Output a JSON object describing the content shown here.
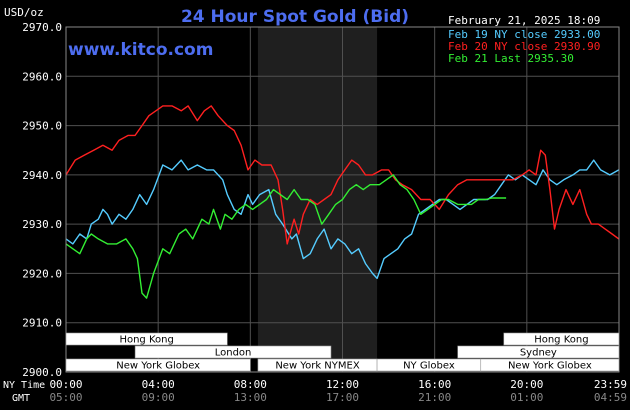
{
  "header": {
    "title": "24 Hour Spot Gold (Bid)",
    "site": "www.kitco.com",
    "timestamp": "February 21, 2025 18:09",
    "unit": "USD/oz"
  },
  "legend": [
    {
      "text": "Feb 19 NY close 2933.00",
      "color": "#55ccff"
    },
    {
      "text": "Feb 20 NY close 2930.90",
      "color": "#ff2020"
    },
    {
      "text": "Feb 21 Last 2935.30",
      "color": "#33ee33"
    }
  ],
  "time_axis": {
    "ny_label": "NY Time",
    "gmt_label": "GMT",
    "ny_ticks": [
      "00:00",
      "04:00",
      "08:00",
      "12:00",
      "16:00",
      "20:00",
      "23:59"
    ],
    "gmt_ticks": [
      "05:00",
      "09:00",
      "13:00",
      "17:00",
      "21:00",
      "01:00",
      "04:59"
    ]
  },
  "sessions": [
    {
      "label": "Hong Kong",
      "start": 0,
      "end": 7,
      "row": 0
    },
    {
      "label": "Hong Kong",
      "start": 19,
      "end": 24,
      "row": 0
    },
    {
      "label": "London",
      "start": 3,
      "end": 11.5,
      "row": 1
    },
    {
      "label": "Sydney",
      "start": 17,
      "end": 24,
      "row": 1
    },
    {
      "label": "New York Globex",
      "start": 0,
      "end": 8,
      "row": 2
    },
    {
      "label": "New York NYMEX",
      "start": 8.33,
      "end": 13.5,
      "row": 2
    },
    {
      "label": "NY Globex",
      "start": 13.5,
      "end": 18,
      "row": 2
    },
    {
      "label": "New York Globex",
      "start": 18,
      "end": 24,
      "row": 2
    }
  ],
  "colors": {
    "background": "#000000",
    "plot_bg": "#000000",
    "shade": "#1f1f1f",
    "grid": "#505050",
    "title": "#4d6df0",
    "axis_text": "#ffffff",
    "session_text": "#000000",
    "session_bg": "#ffffff"
  },
  "chart_data": {
    "type": "line",
    "title": "24 Hour Spot Gold (Bid)",
    "ylabel": "USD/oz",
    "xlabel": "",
    "xlim": [
      0,
      24
    ],
    "ylim": [
      2900,
      2970
    ],
    "y_ticks": [
      "2970.0",
      "2960.0",
      "2950.0",
      "2940.0",
      "2930.0",
      "2920.0",
      "2910.0",
      "2900.0"
    ],
    "y_tick_values": [
      2970,
      2960,
      2950,
      2940,
      2930,
      2920,
      2910,
      2900
    ],
    "shaded_range": [
      8.33,
      13.5
    ],
    "grid": true,
    "legend_position": "top-right",
    "series": [
      {
        "name": "Feb 19 NY close 2933.00",
        "color": "#55ccff",
        "points": [
          [
            0,
            2927
          ],
          [
            0.3,
            2926
          ],
          [
            0.6,
            2928
          ],
          [
            0.9,
            2927
          ],
          [
            1.1,
            2930
          ],
          [
            1.4,
            2931
          ],
          [
            1.6,
            2933
          ],
          [
            1.8,
            2932
          ],
          [
            2.0,
            2930
          ],
          [
            2.3,
            2932
          ],
          [
            2.6,
            2931
          ],
          [
            2.9,
            2933
          ],
          [
            3.2,
            2936
          ],
          [
            3.5,
            2934
          ],
          [
            3.8,
            2937
          ],
          [
            4.2,
            2942
          ],
          [
            4.6,
            2941
          ],
          [
            5.0,
            2943
          ],
          [
            5.3,
            2941
          ],
          [
            5.7,
            2942
          ],
          [
            6.1,
            2941
          ],
          [
            6.4,
            2941
          ],
          [
            6.8,
            2939
          ],
          [
            7.0,
            2936
          ],
          [
            7.3,
            2933
          ],
          [
            7.6,
            2932
          ],
          [
            7.9,
            2936
          ],
          [
            8.1,
            2934
          ],
          [
            8.4,
            2936
          ],
          [
            8.8,
            2937
          ],
          [
            9.1,
            2932
          ],
          [
            9.4,
            2930
          ],
          [
            9.8,
            2927
          ],
          [
            10.0,
            2928
          ],
          [
            10.3,
            2923
          ],
          [
            10.6,
            2924
          ],
          [
            10.9,
            2927
          ],
          [
            11.2,
            2929
          ],
          [
            11.5,
            2925
          ],
          [
            11.8,
            2927
          ],
          [
            12.1,
            2926
          ],
          [
            12.4,
            2924
          ],
          [
            12.7,
            2925
          ],
          [
            13.0,
            2922
          ],
          [
            13.3,
            2920
          ],
          [
            13.5,
            2919
          ],
          [
            13.8,
            2923
          ],
          [
            14.1,
            2924
          ],
          [
            14.4,
            2925
          ],
          [
            14.7,
            2927
          ],
          [
            15.0,
            2928
          ],
          [
            15.3,
            2932
          ],
          [
            15.6,
            2933
          ],
          [
            15.9,
            2934
          ],
          [
            16.2,
            2935
          ],
          [
            16.5,
            2935
          ],
          [
            16.8,
            2934
          ],
          [
            17.1,
            2933
          ],
          [
            17.4,
            2934
          ],
          [
            17.7,
            2935
          ],
          [
            18.0,
            2935
          ],
          [
            18.3,
            2935
          ],
          [
            18.6,
            2936
          ],
          [
            18.9,
            2938
          ],
          [
            19.2,
            2940
          ],
          [
            19.5,
            2939
          ],
          [
            19.8,
            2940
          ],
          [
            20.1,
            2939
          ],
          [
            20.4,
            2938
          ],
          [
            20.7,
            2941
          ],
          [
            21.0,
            2939
          ],
          [
            21.3,
            2938
          ],
          [
            21.6,
            2939
          ],
          [
            22.0,
            2940
          ],
          [
            22.3,
            2941
          ],
          [
            22.6,
            2941
          ],
          [
            22.9,
            2943
          ],
          [
            23.2,
            2941
          ],
          [
            23.6,
            2940
          ],
          [
            23.99,
            2941
          ]
        ]
      },
      {
        "name": "Feb 20 NY close 2930.90",
        "color": "#ff2020",
        "points": [
          [
            0,
            2940
          ],
          [
            0.4,
            2943
          ],
          [
            0.8,
            2944
          ],
          [
            1.2,
            2945
          ],
          [
            1.6,
            2946
          ],
          [
            2.0,
            2945
          ],
          [
            2.3,
            2947
          ],
          [
            2.7,
            2948
          ],
          [
            3.0,
            2948
          ],
          [
            3.3,
            2950
          ],
          [
            3.6,
            2952
          ],
          [
            3.9,
            2953
          ],
          [
            4.2,
            2954
          ],
          [
            4.6,
            2954
          ],
          [
            5.0,
            2953
          ],
          [
            5.3,
            2954
          ],
          [
            5.7,
            2951
          ],
          [
            6.0,
            2953
          ],
          [
            6.3,
            2954
          ],
          [
            6.6,
            2952
          ],
          [
            7.0,
            2950
          ],
          [
            7.3,
            2949
          ],
          [
            7.6,
            2946
          ],
          [
            7.9,
            2941
          ],
          [
            8.2,
            2943
          ],
          [
            8.5,
            2942
          ],
          [
            8.9,
            2942
          ],
          [
            9.2,
            2939
          ],
          [
            9.4,
            2933
          ],
          [
            9.6,
            2926
          ],
          [
            9.9,
            2931
          ],
          [
            10.1,
            2928
          ],
          [
            10.3,
            2932
          ],
          [
            10.6,
            2935
          ],
          [
            10.9,
            2934
          ],
          [
            11.2,
            2935
          ],
          [
            11.5,
            2936
          ],
          [
            11.8,
            2939
          ],
          [
            12.1,
            2941
          ],
          [
            12.4,
            2943
          ],
          [
            12.7,
            2942
          ],
          [
            13.0,
            2940
          ],
          [
            13.3,
            2940
          ],
          [
            13.7,
            2941
          ],
          [
            14.0,
            2941
          ],
          [
            14.3,
            2939
          ],
          [
            14.6,
            2938
          ],
          [
            15.0,
            2937
          ],
          [
            15.4,
            2935
          ],
          [
            15.8,
            2935
          ],
          [
            16.2,
            2933
          ],
          [
            16.6,
            2936
          ],
          [
            17.0,
            2938
          ],
          [
            17.4,
            2939
          ],
          [
            17.8,
            2939
          ],
          [
            18.2,
            2939
          ],
          [
            18.6,
            2939
          ],
          [
            19.0,
            2939
          ],
          [
            19.4,
            2939
          ],
          [
            19.8,
            2940
          ],
          [
            20.1,
            2941
          ],
          [
            20.4,
            2940
          ],
          [
            20.6,
            2945
          ],
          [
            20.8,
            2944
          ],
          [
            21.0,
            2937
          ],
          [
            21.2,
            2929
          ],
          [
            21.4,
            2933
          ],
          [
            21.7,
            2937
          ],
          [
            22.0,
            2934
          ],
          [
            22.3,
            2937
          ],
          [
            22.6,
            2932
          ],
          [
            22.8,
            2930
          ],
          [
            23.1,
            2930
          ],
          [
            23.4,
            2929
          ],
          [
            23.7,
            2928
          ],
          [
            23.99,
            2927
          ]
        ]
      },
      {
        "name": "Feb 21 Last 2935.30",
        "color": "#33ee33",
        "points": [
          [
            0,
            2926
          ],
          [
            0.3,
            2925
          ],
          [
            0.6,
            2924
          ],
          [
            0.9,
            2927
          ],
          [
            1.1,
            2928
          ],
          [
            1.4,
            2927
          ],
          [
            1.8,
            2926
          ],
          [
            2.2,
            2926
          ],
          [
            2.6,
            2927
          ],
          [
            2.9,
            2925
          ],
          [
            3.1,
            2923
          ],
          [
            3.3,
            2916
          ],
          [
            3.5,
            2915
          ],
          [
            3.8,
            2920
          ],
          [
            4.2,
            2925
          ],
          [
            4.5,
            2924
          ],
          [
            4.9,
            2928
          ],
          [
            5.2,
            2929
          ],
          [
            5.5,
            2927
          ],
          [
            5.9,
            2931
          ],
          [
            6.2,
            2930
          ],
          [
            6.4,
            2933
          ],
          [
            6.7,
            2929
          ],
          [
            6.9,
            2932
          ],
          [
            7.2,
            2931
          ],
          [
            7.5,
            2933
          ],
          [
            7.8,
            2934
          ],
          [
            8.1,
            2933
          ],
          [
            8.4,
            2934
          ],
          [
            8.7,
            2935
          ],
          [
            9.0,
            2937
          ],
          [
            9.3,
            2936
          ],
          [
            9.6,
            2935
          ],
          [
            9.9,
            2937
          ],
          [
            10.2,
            2935
          ],
          [
            10.5,
            2935
          ],
          [
            10.8,
            2934
          ],
          [
            11.1,
            2930
          ],
          [
            11.4,
            2932
          ],
          [
            11.7,
            2934
          ],
          [
            12.0,
            2935
          ],
          [
            12.3,
            2937
          ],
          [
            12.6,
            2938
          ],
          [
            12.9,
            2937
          ],
          [
            13.2,
            2938
          ],
          [
            13.6,
            2938
          ],
          [
            13.9,
            2939
          ],
          [
            14.2,
            2940
          ],
          [
            14.5,
            2938
          ],
          [
            14.8,
            2937
          ],
          [
            15.1,
            2935
          ],
          [
            15.4,
            2932
          ],
          [
            15.7,
            2933
          ],
          [
            16.0,
            2934
          ],
          [
            16.3,
            2935
          ],
          [
            16.6,
            2935
          ],
          [
            17.0,
            2934
          ],
          [
            17.3,
            2934
          ],
          [
            17.6,
            2934
          ],
          [
            17.9,
            2935
          ],
          [
            18.2,
            2935
          ],
          [
            18.5,
            2935.3
          ],
          [
            18.8,
            2935.3
          ],
          [
            19.1,
            2935.3
          ]
        ]
      }
    ]
  }
}
